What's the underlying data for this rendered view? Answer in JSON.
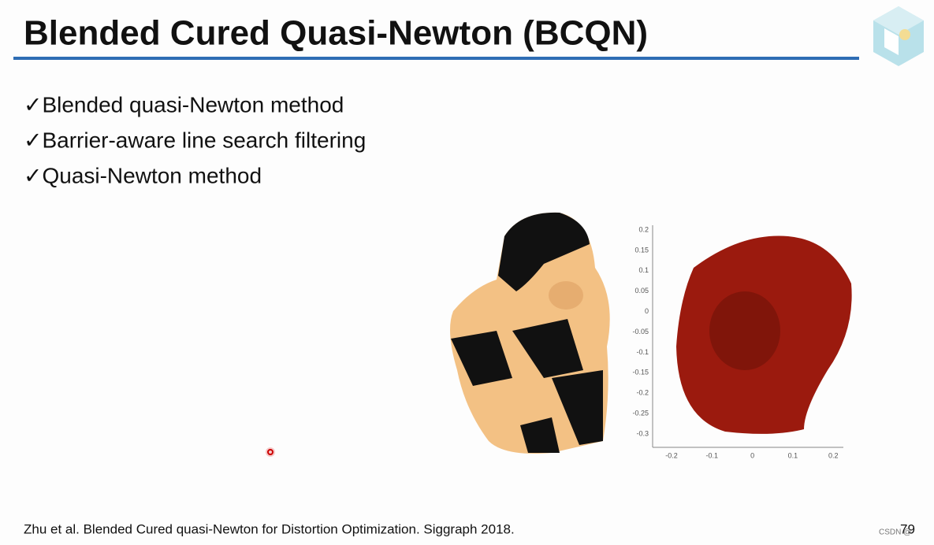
{
  "header": {
    "title": "Blended Cured Quasi-Newton (BCQN)"
  },
  "bullets": [
    "✓Blended quasi-Newton method",
    "✓Barrier-aware line search filtering",
    "✓Quasi-Newton method"
  ],
  "figure": {
    "yticks": [
      "0.2",
      "0.15",
      "0.1",
      "0.05",
      "0",
      "-0.05",
      "-0.1",
      "-0.15",
      "-0.2",
      "-0.25",
      "-0.3"
    ],
    "xticks": [
      "-0.2",
      "-0.1",
      "0",
      "0.1",
      "0.2"
    ]
  },
  "footer": {
    "citation": "Zhu et al. Blended Cured quasi-Newton for Distortion Optimization. Siggraph 2018.",
    "page": "79",
    "watermark": "CSDN @"
  }
}
